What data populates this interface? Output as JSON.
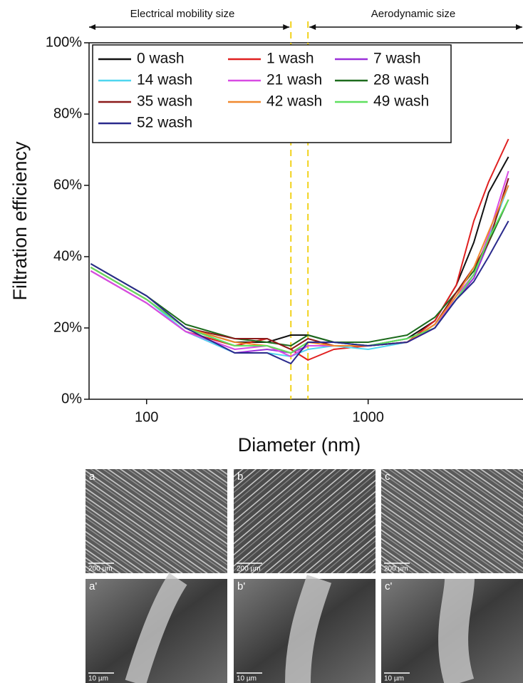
{
  "chart_data": {
    "type": "line",
    "xlabel": "Diameter (nm)",
    "ylabel": "Filtration efficiency",
    "annotations": [
      "Electrical mobility size",
      "Aerodynamic size"
    ],
    "xscale": "log",
    "xlim": [
      55,
      5000
    ],
    "xticks": [
      100,
      1000
    ],
    "ylim": [
      0,
      100
    ],
    "yticks": [
      {
        "value": 0,
        "label": "0%"
      },
      {
        "value": 20,
        "label": "20%"
      },
      {
        "value": 40,
        "label": "40%"
      },
      {
        "value": 60,
        "label": "60%"
      },
      {
        "value": 80,
        "label": "80%"
      },
      {
        "value": 100,
        "label": "100%"
      }
    ],
    "grid": false,
    "legend": "upper left",
    "vlines": [
      448,
      535
    ],
    "vline_color": "#f2d21b",
    "x": [
      56,
      100,
      150,
      250,
      350,
      448,
      535,
      700,
      1000,
      1500,
      2000,
      2500,
      3000,
      3500,
      4300
    ],
    "series": [
      {
        "name": "0 wash",
        "color": "#111111",
        "values": [
          37,
          28,
          20,
          16,
          16,
          18,
          18,
          16,
          15,
          17,
          22,
          32,
          44,
          58,
          68
        ]
      },
      {
        "name": "1 wash",
        "color": "#e02020",
        "values": [
          36,
          27,
          19,
          15,
          17,
          14,
          11,
          14,
          15,
          16,
          22,
          32,
          50,
          61,
          73
        ]
      },
      {
        "name": "7 wash",
        "color": "#9b30d9",
        "values": [
          36,
          27,
          19,
          13,
          14,
          13,
          15,
          15,
          15,
          16,
          20,
          28,
          34,
          44,
          62
        ]
      },
      {
        "name": "14 wash",
        "color": "#4fd6ef",
        "values": [
          37,
          28,
          19,
          13,
          13,
          12,
          14,
          15,
          14,
          16,
          21,
          28,
          35,
          45,
          60
        ]
      },
      {
        "name": "21 wash",
        "color": "#d84be3",
        "values": [
          36,
          27,
          19,
          14,
          15,
          12,
          15,
          15,
          15,
          16,
          20,
          29,
          35,
          46,
          64
        ]
      },
      {
        "name": "28 wash",
        "color": "#1d6b1d",
        "values": [
          38,
          29,
          21,
          17,
          16,
          15,
          18,
          16,
          16,
          18,
          23,
          30,
          36,
          44,
          56
        ]
      },
      {
        "name": "35 wash",
        "color": "#8b1a1a",
        "values": [
          37,
          28,
          20,
          17,
          17,
          14,
          17,
          15,
          15,
          16,
          21,
          30,
          37,
          44,
          62
        ]
      },
      {
        "name": "42 wash",
        "color": "#f0892f",
        "values": [
          37,
          28,
          20,
          16,
          15,
          13,
          16,
          15,
          15,
          16,
          21,
          29,
          37,
          47,
          60
        ]
      },
      {
        "name": "49 wash",
        "color": "#5fe05f",
        "values": [
          37,
          28,
          20,
          15,
          15,
          13,
          16,
          16,
          15,
          17,
          20,
          28,
          35,
          45,
          56
        ]
      },
      {
        "name": "52 wash",
        "color": "#2a2a8c",
        "values": [
          38,
          29,
          20,
          13,
          13,
          10,
          16,
          16,
          15,
          16,
          20,
          28,
          33,
          40,
          50
        ]
      }
    ]
  },
  "images": [
    {
      "label": "a",
      "scale": "200 µm"
    },
    {
      "label": "b",
      "scale": "200 µm"
    },
    {
      "label": "c",
      "scale": "200 µm"
    },
    {
      "label": "a'",
      "scale": "10 µm"
    },
    {
      "label": "b'",
      "scale": "10 µm"
    },
    {
      "label": "c'",
      "scale": "10 µm"
    }
  ]
}
